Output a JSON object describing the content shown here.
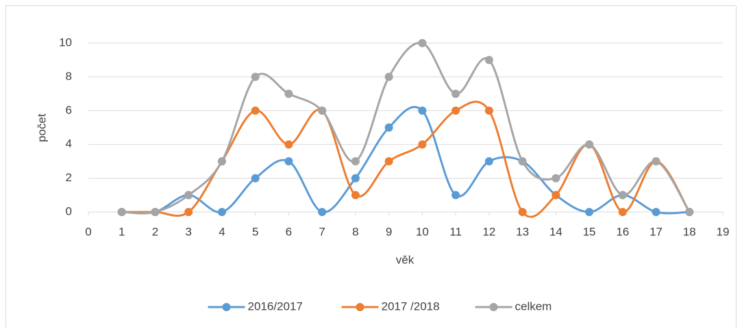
{
  "chart_data": {
    "type": "line",
    "x": [
      1,
      2,
      3,
      4,
      5,
      6,
      7,
      8,
      9,
      10,
      11,
      12,
      13,
      14,
      15,
      16,
      17,
      18
    ],
    "series": [
      {
        "name": "2016/2017",
        "color": "#5b9bd5",
        "values": [
          0,
          0,
          1,
          0,
          2,
          3,
          0,
          2,
          5,
          6,
          1,
          3,
          3,
          1,
          0,
          1,
          0,
          0
        ]
      },
      {
        "name": "2017 /2018",
        "color": "#ed7d31",
        "values": [
          0,
          0,
          0,
          3,
          6,
          4,
          6,
          1,
          3,
          4,
          6,
          6,
          0,
          1,
          4,
          0,
          3,
          0
        ]
      },
      {
        "name": "celkem",
        "color": "#a5a5a5",
        "values": [
          0,
          0,
          1,
          3,
          8,
          7,
          6,
          3,
          8,
          10,
          7,
          9,
          3,
          2,
          4,
          1,
          3,
          0
        ]
      }
    ],
    "xlabel": "věk",
    "ylabel": "počet",
    "xlim": [
      0,
      19
    ],
    "xticks": [
      0,
      1,
      2,
      3,
      4,
      5,
      6,
      7,
      8,
      9,
      10,
      11,
      12,
      13,
      14,
      15,
      16,
      17,
      18,
      19
    ],
    "ylim": [
      0,
      10
    ],
    "yticks": [
      0,
      2,
      4,
      6,
      8,
      10
    ],
    "grid": true,
    "smooth": true,
    "legend": "bottom"
  }
}
